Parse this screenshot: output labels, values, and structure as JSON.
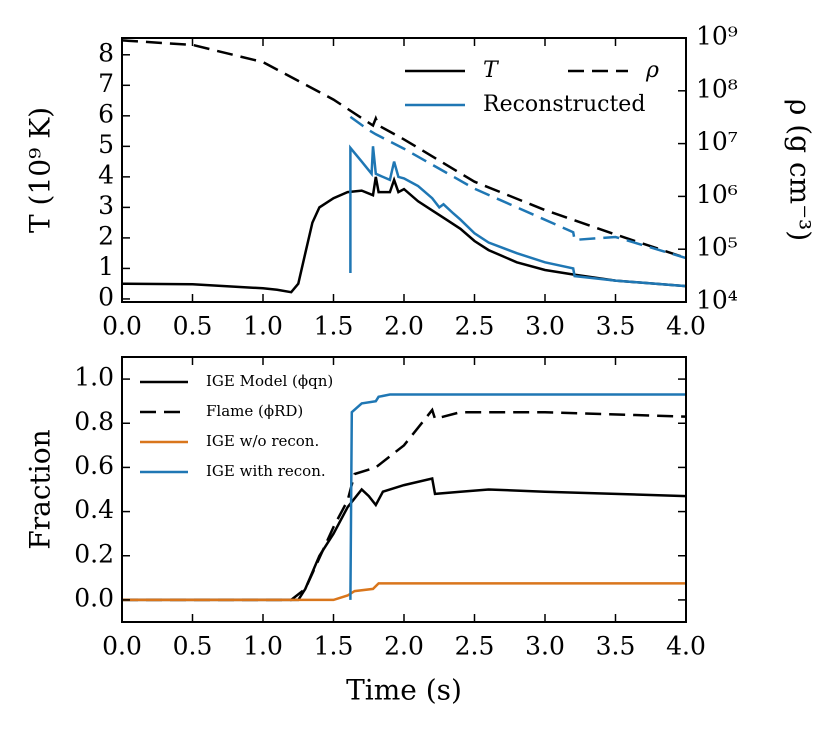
{
  "chart_data": [
    {
      "type": "line",
      "ylabel": "T (10⁹  K)",
      "y2label": "ρ (g cm⁻³)",
      "xlim": [
        0,
        4
      ],
      "ylim": [
        -0.1,
        8.55
      ],
      "y2lim": [
        10000,
        1000000000
      ],
      "y2scale": "log",
      "xticks": [
        {
          "value": 0,
          "label": "0.0"
        },
        {
          "value": 0.5,
          "label": "0.5"
        },
        {
          "value": 1,
          "label": "1.0"
        },
        {
          "value": 1.5,
          "label": "1.5"
        },
        {
          "value": 2,
          "label": "2.0"
        },
        {
          "value": 2.5,
          "label": "2.5"
        },
        {
          "value": 3,
          "label": "3.0"
        },
        {
          "value": 3.5,
          "label": "3.5"
        },
        {
          "value": 4,
          "label": "4.0"
        }
      ],
      "yticks": [
        0,
        1,
        2,
        3,
        4,
        5,
        6,
        7,
        8
      ],
      "y2ticks": [
        {
          "value": 10000,
          "label": "10⁴"
        },
        {
          "value": 100000,
          "label": "10⁵"
        },
        {
          "value": 1000000,
          "label": "10⁶"
        },
        {
          "value": 10000000,
          "label": "10⁷"
        },
        {
          "value": 100000000,
          "label": "10⁸"
        },
        {
          "value": 1000000000,
          "label": "10⁹"
        }
      ],
      "legend": "upper right",
      "series": [
        {
          "name": "T",
          "color": "#000000",
          "dash": "solid",
          "x": [
            0,
            0.5,
            1.0,
            1.1,
            1.2,
            1.25,
            1.3,
            1.35,
            1.4,
            1.5,
            1.6,
            1.7,
            1.78,
            1.8,
            1.82,
            1.9,
            1.93,
            1.96,
            2.0,
            2.1,
            2.2,
            2.3,
            2.4,
            2.5,
            2.6,
            2.8,
            3.0,
            3.2,
            3.5,
            4.0
          ],
          "values": [
            0.5,
            0.48,
            0.35,
            0.3,
            0.22,
            0.5,
            1.5,
            2.5,
            3.0,
            3.3,
            3.5,
            3.55,
            3.4,
            4.0,
            3.5,
            3.5,
            3.9,
            3.5,
            3.6,
            3.2,
            2.9,
            2.6,
            2.3,
            1.9,
            1.6,
            1.2,
            0.95,
            0.8,
            0.6,
            0.42
          ]
        },
        {
          "name": "ρ",
          "color": "#000000",
          "dash": "dashed",
          "axis": "y2",
          "x": [
            0,
            0.5,
            1.0,
            1.5,
            1.78,
            1.8,
            1.82,
            2.0,
            2.5,
            3.0,
            3.5,
            4.0
          ],
          "values": [
            900000000,
            740000000,
            350000000,
            68000000,
            22000000,
            30000000,
            22000000,
            12000000,
            1900000,
            550000,
            190000,
            68000
          ]
        },
        {
          "name": "Reconstructed",
          "color": "#1f77b4",
          "dash": "solid",
          "x": [
            1.62,
            1.62,
            1.7,
            1.77,
            1.78,
            1.8,
            1.9,
            1.93,
            1.96,
            2.0,
            2.1,
            2.2,
            2.25,
            2.28,
            2.35,
            2.4,
            2.5,
            2.6,
            2.8,
            3.0,
            3.2,
            3.21,
            3.5,
            4.0
          ],
          "values": [
            0.85,
            4.95,
            4.5,
            4.1,
            5.0,
            4.1,
            3.9,
            4.5,
            4.0,
            3.95,
            3.7,
            3.3,
            3.0,
            3.1,
            2.8,
            2.6,
            2.15,
            1.85,
            1.5,
            1.2,
            1.0,
            0.75,
            0.6,
            0.42
          ]
        },
        {
          "color": "#1f77b4",
          "dash": "dashed",
          "axis": "y2",
          "x": [
            1.62,
            1.75,
            1.8,
            2.0,
            2.5,
            3.2,
            3.21,
            3.5,
            4.0
          ],
          "values": [
            32000000,
            18000000,
            15000000,
            8000000,
            1400000,
            210000,
            150000,
            170000,
            68000
          ]
        }
      ]
    },
    {
      "type": "line",
      "xlabel": "Time (s)",
      "ylabel": "Fraction",
      "xlim": [
        0,
        4
      ],
      "ylim": [
        -0.1,
        1.1
      ],
      "xticks": [
        {
          "value": 0,
          "label": "0.0"
        },
        {
          "value": 0.5,
          "label": "0.5"
        },
        {
          "value": 1,
          "label": "1.0"
        },
        {
          "value": 1.5,
          "label": "1.5"
        },
        {
          "value": 2,
          "label": "2.0"
        },
        {
          "value": 2.5,
          "label": "2.5"
        },
        {
          "value": 3,
          "label": "3.0"
        },
        {
          "value": 3.5,
          "label": "3.5"
        },
        {
          "value": 4,
          "label": "4.0"
        }
      ],
      "yticks": [
        {
          "value": 0,
          "label": "0.0"
        },
        {
          "value": 0.2,
          "label": "0.2"
        },
        {
          "value": 0.4,
          "label": "0.4"
        },
        {
          "value": 0.6,
          "label": "0.6"
        },
        {
          "value": 0.8,
          "label": "0.8"
        },
        {
          "value": 1,
          "label": "1.0"
        }
      ],
      "legend": "upper left",
      "series": [
        {
          "name": "IGE Model (ϕqn)",
          "color": "#000000",
          "dash": "solid",
          "x": [
            0,
            1.2,
            1.25,
            1.3,
            1.4,
            1.5,
            1.6,
            1.7,
            1.75,
            1.8,
            1.85,
            2.0,
            2.2,
            2.22,
            2.4,
            2.6,
            3.0,
            4.0
          ],
          "values": [
            0,
            0,
            0,
            0.05,
            0.2,
            0.3,
            0.42,
            0.5,
            0.47,
            0.43,
            0.49,
            0.52,
            0.55,
            0.48,
            0.49,
            0.5,
            0.49,
            0.47
          ]
        },
        {
          "name": "Flame (ϕRD)",
          "color": "#000000",
          "dash": "dashed",
          "x": [
            0,
            1.2,
            1.3,
            1.5,
            1.6,
            1.65,
            1.8,
            2.0,
            2.1,
            2.2,
            2.22,
            2.4,
            3.0,
            4.0
          ],
          "values": [
            0,
            0,
            0.05,
            0.33,
            0.45,
            0.57,
            0.6,
            0.7,
            0.78,
            0.86,
            0.82,
            0.85,
            0.85,
            0.83
          ]
        },
        {
          "name": "IGE w/o recon.",
          "color": "#d9761c",
          "dash": "solid",
          "x": [
            0,
            1.5,
            1.6,
            1.65,
            1.78,
            1.82,
            4.0
          ],
          "values": [
            0,
            0,
            0.02,
            0.04,
            0.05,
            0.075,
            0.075
          ]
        },
        {
          "name": "IGE with recon.",
          "color": "#1f77b4",
          "dash": "solid",
          "x": [
            1.62,
            1.63,
            1.7,
            1.8,
            1.82,
            1.9,
            4.0
          ],
          "values": [
            0,
            0.85,
            0.89,
            0.9,
            0.92,
            0.93,
            0.93
          ]
        }
      ]
    }
  ]
}
